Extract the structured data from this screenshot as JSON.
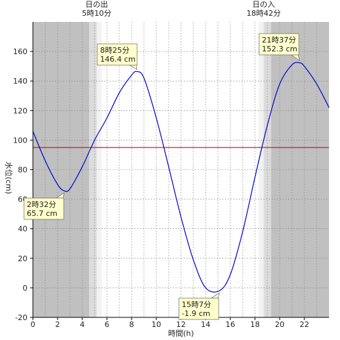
{
  "chart_data": {
    "type": "line",
    "title": "",
    "xlabel": "時間(h)",
    "ylabel": "水位(cm)",
    "xlim": [
      0,
      24
    ],
    "ylim": [
      -20,
      180
    ],
    "x_ticks": [
      0,
      2,
      4,
      6,
      8,
      10,
      12,
      14,
      16,
      18,
      20,
      22
    ],
    "y_ticks": [
      -20,
      0,
      20,
      40,
      60,
      80,
      100,
      120,
      140,
      160
    ],
    "grid": true,
    "reference_line": {
      "value": 95,
      "color": "#ee0000"
    },
    "sun": {
      "sunrise": {
        "label": "日の出",
        "time_label": "5時10分",
        "hour": 5.167
      },
      "sunset": {
        "label": "日の入",
        "time_label": "18時42分",
        "hour": 18.7
      }
    },
    "series": [
      {
        "color": "#0000cc",
        "x": [
          0,
          1,
          2,
          2.53,
          3,
          4,
          5,
          6,
          7,
          8,
          8.42,
          9,
          10,
          11,
          12,
          13,
          14,
          15.12,
          16,
          17,
          18,
          19,
          20,
          21,
          21.62,
          22,
          23,
          24
        ],
        "y": [
          106,
          86,
          70,
          65.7,
          67,
          82,
          100,
          115,
          132,
          144,
          146.4,
          142,
          115,
          82,
          48,
          19,
          0,
          -1.9,
          9,
          38,
          75,
          110,
          138,
          151,
          152.3,
          150,
          138,
          122
        ]
      }
    ],
    "annotations": [
      {
        "time": "8時25分",
        "value": "146.4 cm",
        "x": 8.42,
        "y": 146.4
      },
      {
        "time": "21時37分",
        "value": "152.3 cm",
        "x": 21.62,
        "y": 152.3
      },
      {
        "time": "2時32分",
        "value": "65.7 cm",
        "x": 2.53,
        "y": 65.7
      },
      {
        "time": "15時7分",
        "value": "-1.9 cm",
        "x": 15.12,
        "y": -1.9
      }
    ]
  }
}
